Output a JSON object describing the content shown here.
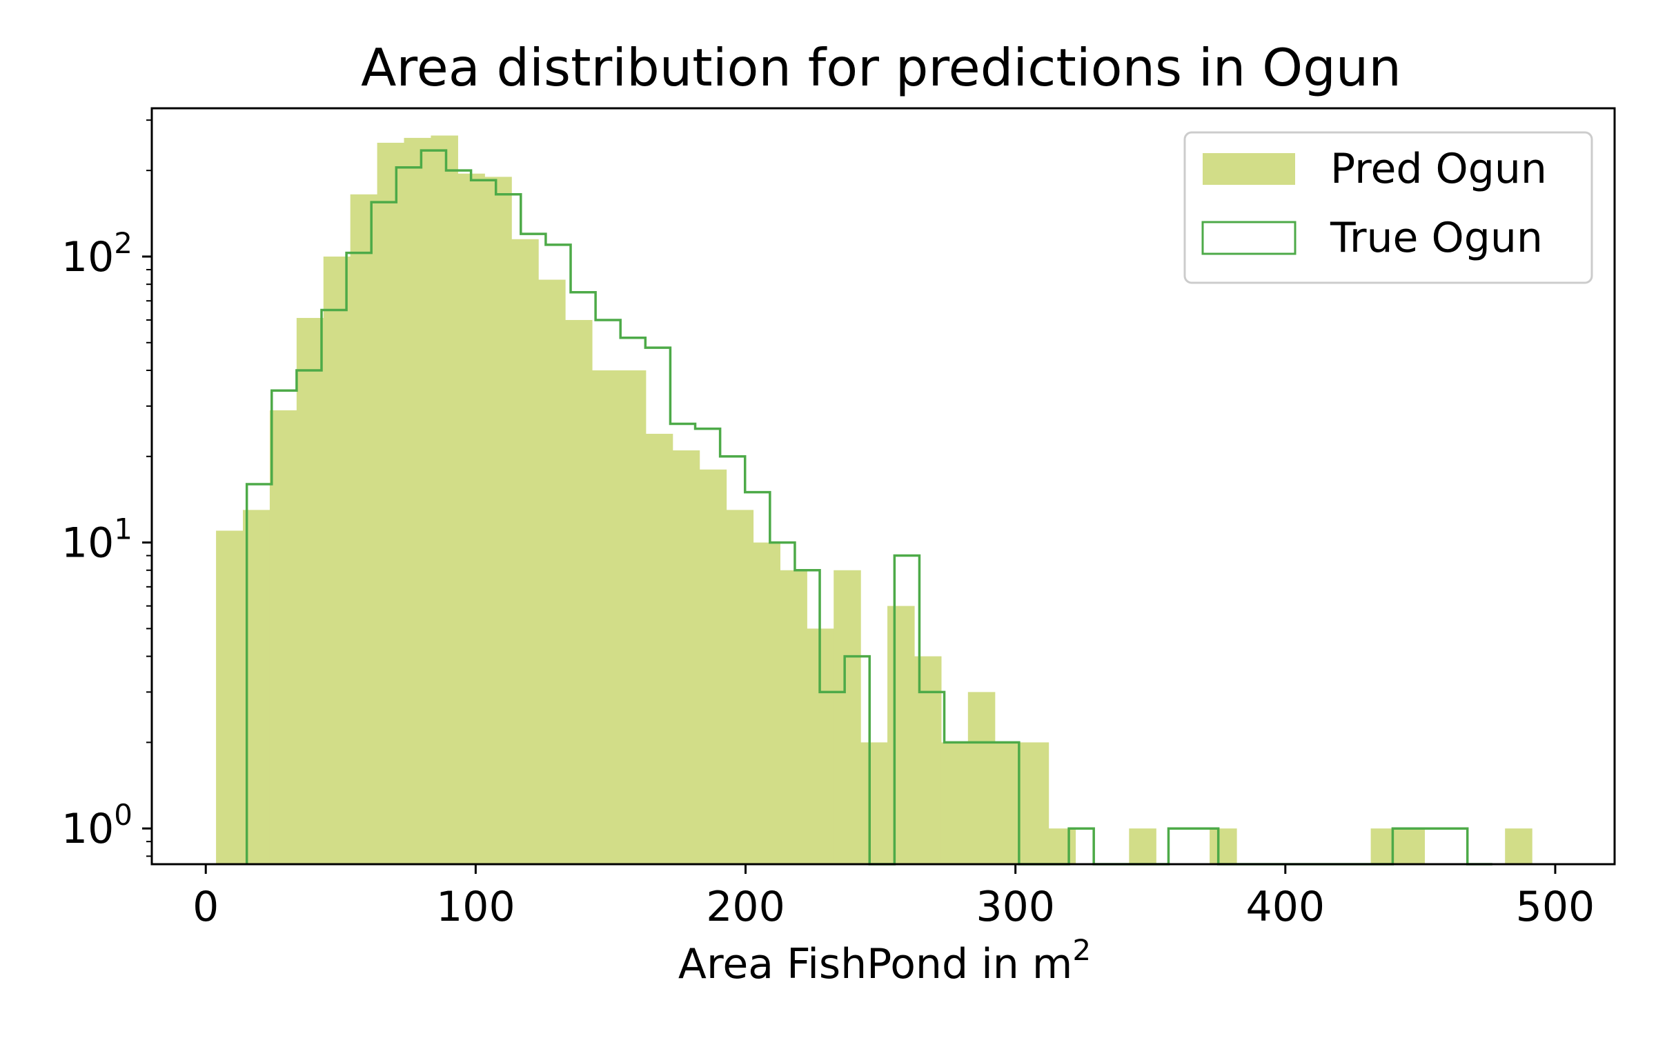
{
  "chart_data": {
    "type": "bar",
    "title": "Area distribution for predictions in Ogun",
    "xlabel": "Area FishPond in m",
    "xlabel_superscript": "2",
    "ylabel": "",
    "yscale": "log",
    "xlim": [
      -20,
      522
    ],
    "ylim": [
      0.75,
      330
    ],
    "xticks": [
      0,
      100,
      200,
      300,
      400,
      500
    ],
    "xtick_labels": [
      "0",
      "100",
      "200",
      "300",
      "400",
      "500"
    ],
    "yticks": [
      1,
      10,
      100
    ],
    "ytick_labels": [
      {
        "base": "10",
        "exp": "0"
      },
      {
        "base": "10",
        "exp": "1"
      },
      {
        "base": "10",
        "exp": "2"
      }
    ],
    "grid": false,
    "legend_position": "top-right",
    "series": [
      {
        "name": "Pred Ogun",
        "style": "filled",
        "color": "#d2dd88",
        "edges": [
          3.8,
          13.75,
          23.7,
          33.65,
          43.6,
          53.55,
          63.5,
          73.45,
          83.4,
          93.35,
          103.3,
          113.25,
          123.2,
          133.15,
          143.1,
          153.05,
          163.0,
          172.95,
          182.9,
          192.85,
          202.8,
          212.75,
          222.7,
          232.65,
          242.6,
          252.55,
          262.5,
          272.45,
          282.4,
          292.35,
          302.3,
          312.25,
          322.2,
          332.15,
          342.1,
          352.05,
          362.0,
          371.95,
          381.9,
          391.85,
          401.8,
          411.75,
          421.7,
          431.65,
          441.6,
          451.55,
          461.5,
          471.45,
          481.4,
          491.35,
          501.3
        ],
        "values": [
          11,
          13,
          29,
          61,
          100,
          165,
          250,
          260,
          265,
          195,
          190,
          115,
          83,
          60,
          40,
          40,
          24,
          21,
          18,
          13,
          10,
          8,
          5,
          8,
          2,
          6,
          4,
          2,
          3,
          2,
          2,
          1,
          0,
          0,
          1,
          0,
          0,
          1,
          0,
          0,
          0,
          0,
          0,
          1,
          1,
          0,
          0,
          0,
          1,
          0
        ]
      },
      {
        "name": "True Ogun",
        "style": "step",
        "color": "#4daa48",
        "edges": [
          15.2,
          24.43,
          33.66,
          42.89,
          52.12,
          61.35,
          70.58,
          79.81,
          89.04,
          98.27,
          107.5,
          116.73,
          125.96,
          135.19,
          144.42,
          153.65,
          162.88,
          172.11,
          181.34,
          190.57,
          199.8,
          209.03,
          218.26,
          227.49,
          236.72,
          245.95,
          255.18,
          264.41,
          273.64,
          282.87,
          292.1,
          301.33,
          310.56,
          319.79,
          329.02,
          338.25,
          347.48,
          356.71,
          365.94,
          375.17,
          384.4,
          393.63,
          402.86,
          412.09,
          421.32,
          430.55,
          439.78,
          449.01,
          458.24,
          467.47,
          476.7
        ],
        "values": [
          16,
          34,
          40,
          65,
          103,
          155,
          205,
          235,
          200,
          185,
          165,
          120,
          110,
          75,
          60,
          52,
          48,
          26,
          25,
          20,
          15,
          10,
          8,
          3,
          4,
          0,
          9,
          3,
          2,
          2,
          2,
          0,
          0,
          1,
          0,
          0,
          0,
          1,
          1,
          0,
          0,
          0,
          0,
          0,
          0,
          0,
          1,
          1,
          1,
          0
        ]
      }
    ]
  }
}
